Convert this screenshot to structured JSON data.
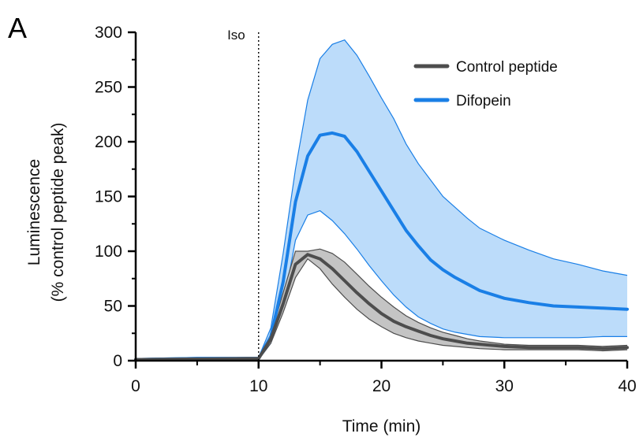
{
  "panel_label": "A",
  "chart_data": {
    "type": "line",
    "title": "",
    "xlabel": "Time (min)",
    "ylabel_line1": "Luminescence",
    "ylabel_line2": "(% control peptide peak)",
    "xlim": [
      0,
      40
    ],
    "ylim": [
      0,
      300
    ],
    "xticks": [
      0,
      10,
      20,
      30,
      40
    ],
    "yticks": [
      0,
      50,
      100,
      150,
      200,
      250,
      300
    ],
    "grid": false,
    "legend_position": "top-right",
    "annotation": {
      "label": "Iso",
      "x": 10
    },
    "series": [
      {
        "name": "Control peptide",
        "color": "#4d4d4d",
        "band_color": "#c4c4c4",
        "x": [
          0,
          5,
          10,
          11,
          12,
          13,
          14,
          15,
          16,
          17,
          18,
          19,
          20,
          21,
          22,
          23,
          24,
          25,
          26,
          27,
          28,
          30,
          32,
          34,
          36,
          38,
          40
        ],
        "mean": [
          1,
          1.5,
          2,
          20,
          52,
          88,
          97,
          93,
          84,
          73,
          62,
          52,
          43,
          36,
          31,
          27,
          23,
          20,
          18,
          16,
          15,
          13,
          12,
          12,
          12,
          11,
          12
        ],
        "upper": [
          2,
          2.5,
          3,
          24,
          62,
          100,
          100,
          102,
          98,
          90,
          79,
          68,
          58,
          49,
          41,
          35,
          30,
          26,
          23,
          20,
          18,
          15,
          14,
          14,
          14,
          13,
          14
        ],
        "lower": [
          0,
          0.5,
          1,
          16,
          44,
          76,
          93,
          84,
          70,
          58,
          47,
          38,
          31,
          25,
          21,
          18,
          16,
          14,
          13,
          12,
          11,
          10,
          10,
          10,
          10,
          9,
          10
        ]
      },
      {
        "name": "Difopein",
        "color": "#1a7fe6",
        "band_color": "#bcdcfa",
        "x": [
          0,
          5,
          10,
          11,
          12,
          13,
          14,
          15,
          16,
          17,
          18,
          19,
          20,
          21,
          22,
          23,
          24,
          25,
          26,
          27,
          28,
          30,
          32,
          34,
          36,
          38,
          40
        ],
        "mean": [
          1,
          2,
          2,
          22,
          72,
          145,
          187,
          206,
          208,
          205,
          191,
          173,
          155,
          137,
          119,
          105,
          92,
          83,
          76,
          70,
          64,
          57,
          53,
          50,
          49,
          48,
          47
        ],
        "upper": [
          2,
          3,
          3,
          30,
          98,
          175,
          238,
          276,
          289,
          293,
          279,
          260,
          240,
          221,
          198,
          180,
          165,
          150,
          140,
          130,
          121,
          110,
          101,
          93,
          88,
          82,
          78
        ],
        "lower": [
          0,
          1,
          1,
          16,
          50,
          110,
          133,
          137,
          128,
          116,
          102,
          87,
          73,
          60,
          49,
          40,
          34,
          29,
          26,
          24,
          22,
          21,
          21,
          21,
          21,
          22,
          22
        ]
      }
    ]
  }
}
